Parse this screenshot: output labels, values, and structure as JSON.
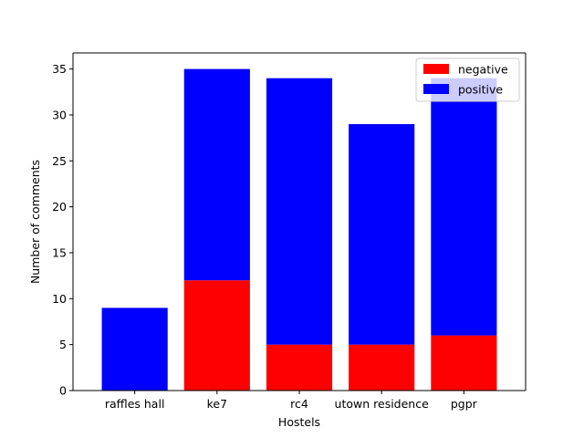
{
  "chart_data": {
    "type": "bar",
    "stacked": true,
    "categories": [
      "raffles hall",
      "ke7",
      "rc4",
      "utown residence",
      "pgpr"
    ],
    "series": [
      {
        "name": "negative",
        "color": "#ff0000",
        "values": [
          0,
          12,
          5,
          5,
          6
        ]
      },
      {
        "name": "positive",
        "color": "#0000ff",
        "values": [
          9,
          23,
          29,
          24,
          28
        ]
      }
    ],
    "title": "",
    "xlabel": "Hostels",
    "ylabel": "Number of comments",
    "ylim": [
      0,
      36.75
    ],
    "yticks": [
      0,
      5,
      10,
      15,
      20,
      25,
      30,
      35
    ],
    "grid": false,
    "legend_position": "upper right"
  }
}
